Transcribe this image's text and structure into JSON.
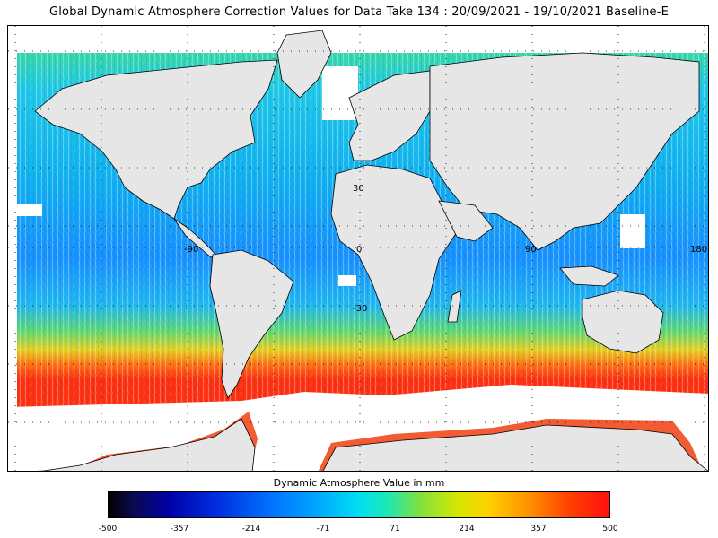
{
  "title": "Global Dynamic Atmosphere Correction Values for Data Take 134 : 20/09/2021 - 19/10/2021 Baseline-E",
  "map": {
    "grid_labels": {
      "lon": [
        "-90",
        "0",
        "90",
        "180"
      ],
      "lat": [
        "30",
        "-30"
      ]
    },
    "colors": {
      "land": "#e6e6e6",
      "ocean_no_data": "#ffffff",
      "coastline": "#000000"
    }
  },
  "colorbar": {
    "title": "Dynamic Atmosphere Value in mm",
    "min": -500,
    "max": 500,
    "ticks": [
      "-500",
      "-357",
      "-214",
      "-71",
      "71",
      "214",
      "357",
      "500"
    ]
  }
}
